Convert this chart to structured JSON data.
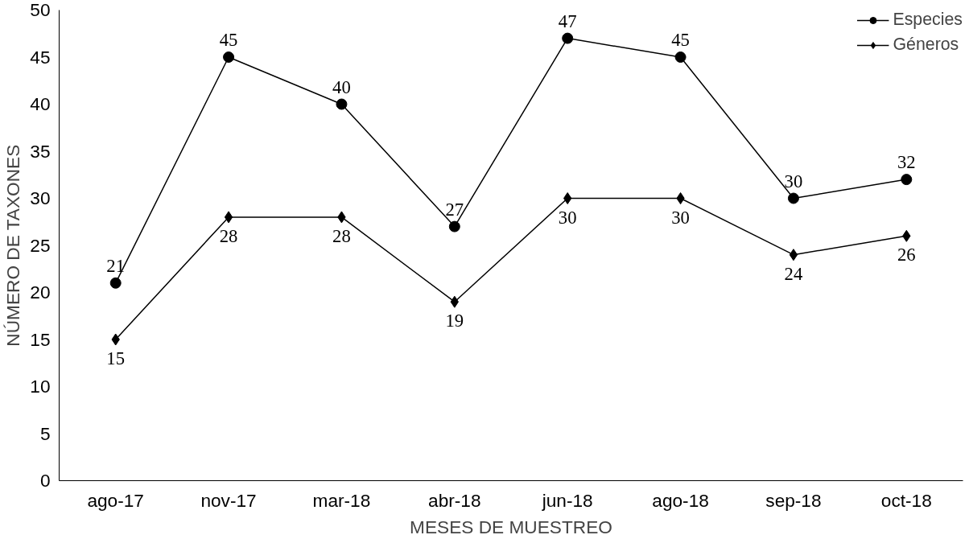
{
  "chart_data": {
    "type": "line",
    "xlabel": "MESES DE MUESTREO",
    "ylabel": "NÚMERO DE TAXONES",
    "categories": [
      "ago-17",
      "nov-17",
      "mar-18",
      "abr-18",
      "jun-18",
      "ago-18",
      "sep-18",
      "oct-18"
    ],
    "series": [
      {
        "name": "Especies",
        "color": "#000000",
        "marker": "circle",
        "values": [
          21,
          45,
          40,
          27,
          47,
          45,
          30,
          32
        ]
      },
      {
        "name": "Géneros",
        "color": "#000000",
        "marker": "diamond",
        "values": [
          15,
          28,
          28,
          19,
          30,
          30,
          24,
          26
        ]
      }
    ],
    "ylim": [
      0,
      50
    ],
    "yticks": [
      0,
      5,
      10,
      15,
      20,
      25,
      30,
      35,
      40,
      45,
      50
    ],
    "data_labels": true,
    "legend": "top right",
    "grid": false,
    "line_style": "solid"
  }
}
